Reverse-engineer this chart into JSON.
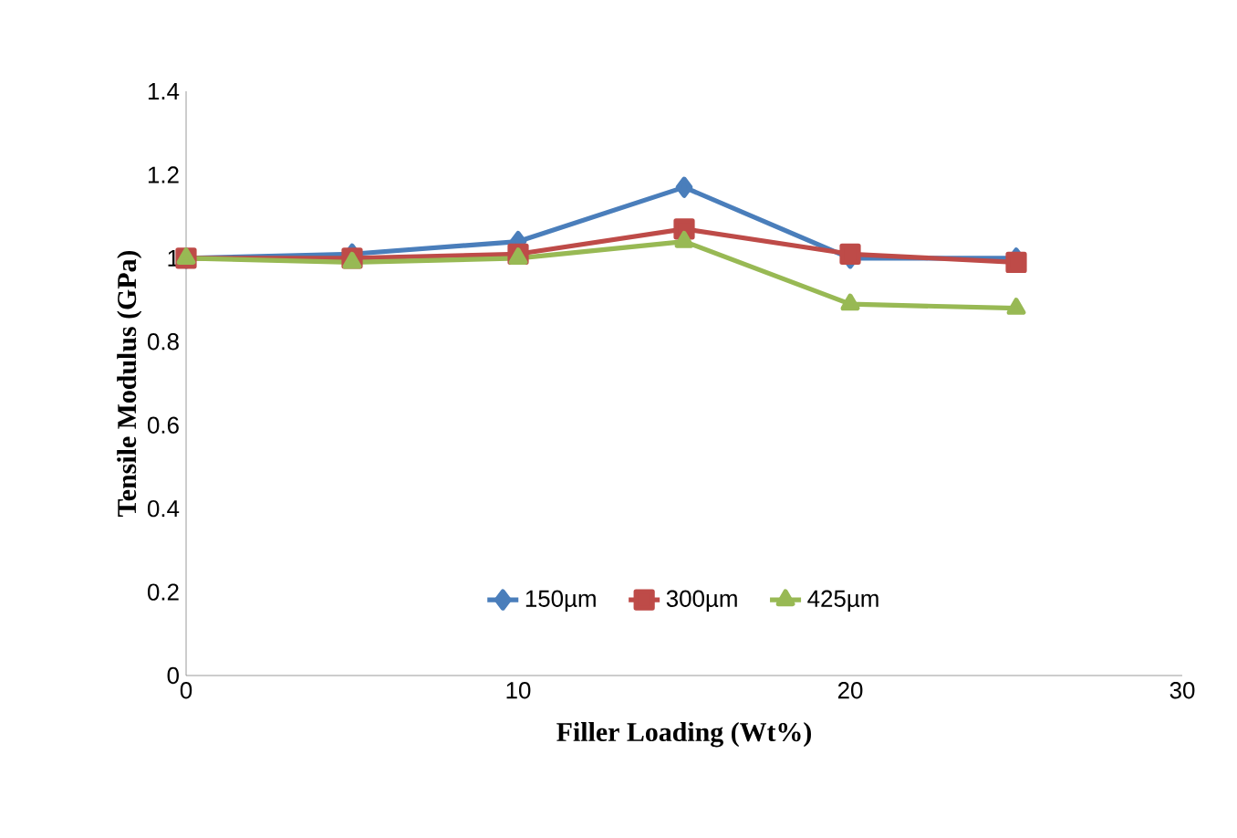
{
  "chart_data": {
    "type": "line",
    "xlabel": "Filler Loading (Wt%)",
    "ylabel": "Tensile Modulus (GPa)",
    "x": [
      0,
      5,
      10,
      15,
      20,
      25
    ],
    "series": [
      {
        "name": "150µm",
        "color": "#4a7ebb",
        "marker": "diamond",
        "values": [
          1.0,
          1.01,
          1.04,
          1.17,
          1.0,
          1.0
        ]
      },
      {
        "name": "300µm",
        "color": "#be4b48",
        "marker": "square",
        "values": [
          1.0,
          1.0,
          1.01,
          1.07,
          1.01,
          0.99
        ]
      },
      {
        "name": "425µm",
        "color": "#98b954",
        "marker": "triangle",
        "values": [
          1.0,
          0.99,
          1.0,
          1.04,
          0.89,
          0.88
        ]
      }
    ],
    "xlim": [
      0,
      30
    ],
    "xticks": [
      0,
      10,
      20,
      30
    ],
    "ylim": [
      0,
      1.4
    ],
    "yticks": [
      0,
      0.2,
      0.4,
      0.6,
      0.8,
      1,
      1.2,
      1.4
    ],
    "grid": false,
    "legend": "bottom",
    "line_style": "solid"
  }
}
